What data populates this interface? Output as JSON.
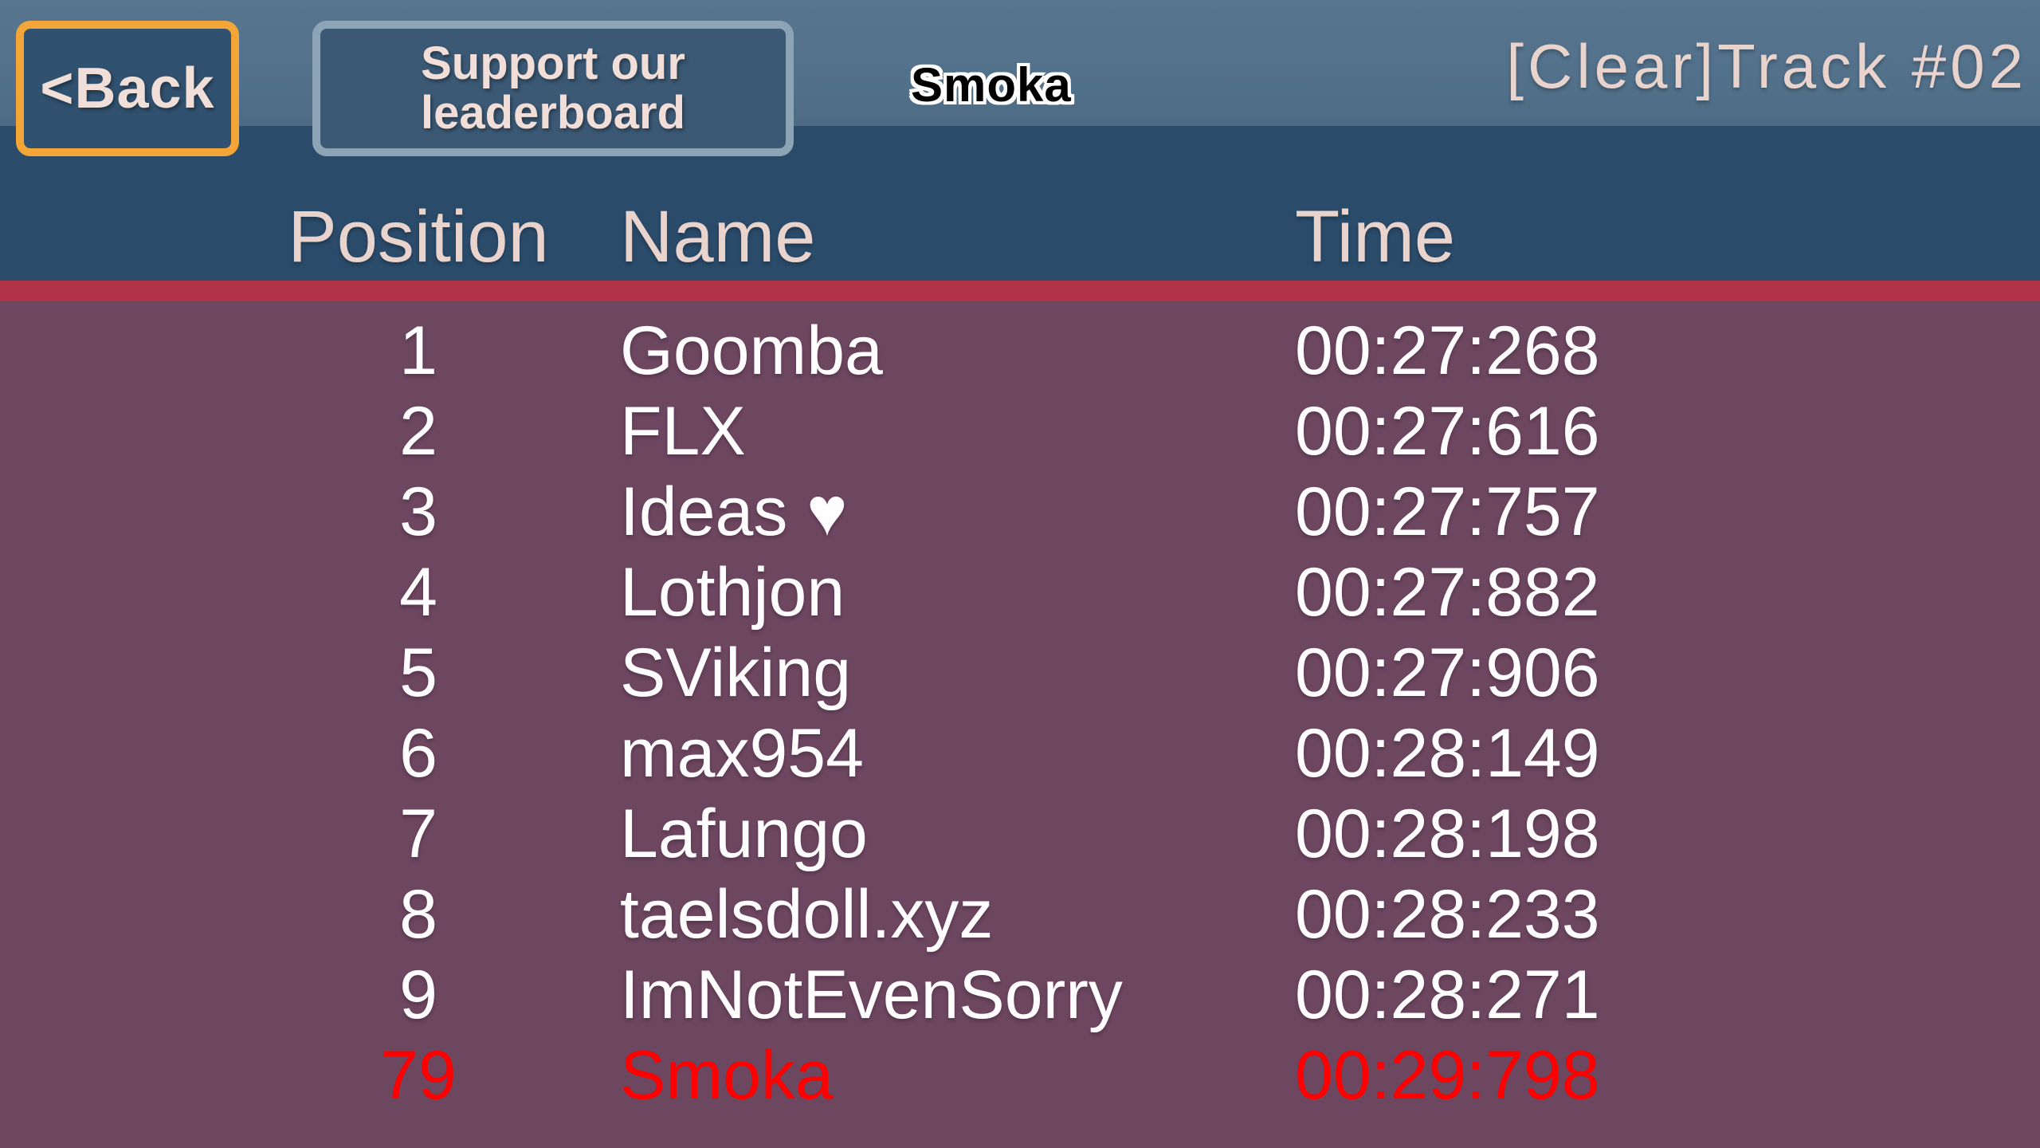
{
  "topbar": {
    "back_button_label": "<Back",
    "support_button": {
      "line1": "Support our",
      "line2": "leaderboard"
    },
    "player_name_label": "Smoka",
    "track_title": "[Clear]Track #02"
  },
  "leaderboard": {
    "headers": {
      "position": "Position",
      "name": "Name",
      "time": "Time"
    },
    "rows": [
      {
        "position": "1",
        "name": "Goomba",
        "time": "00:27:268",
        "highlight": false
      },
      {
        "position": "2",
        "name": "FLX",
        "time": "00:27:616",
        "highlight": false
      },
      {
        "position": "3",
        "name": "Ideas ♥",
        "time": "00:27:757",
        "highlight": false
      },
      {
        "position": "4",
        "name": "Lothjon",
        "time": "00:27:882",
        "highlight": false
      },
      {
        "position": "5",
        "name": "SViking",
        "time": "00:27:906",
        "highlight": false
      },
      {
        "position": "6",
        "name": "max954",
        "time": "00:28:149",
        "highlight": false
      },
      {
        "position": "7",
        "name": "Lafungo",
        "time": "00:28:198",
        "highlight": false
      },
      {
        "position": "8",
        "name": "taelsdoll.xyz",
        "time": "00:28:233",
        "highlight": false
      },
      {
        "position": "9",
        "name": "ImNotEvenSorry",
        "time": "00:28:271",
        "highlight": false
      },
      {
        "position": "79",
        "name": "Smoka",
        "time": "00:29:798",
        "highlight": true
      }
    ]
  },
  "colors": {
    "top_strip": "#517089",
    "header_band": "#2a4b6a",
    "divider_red": "#b23348",
    "body_background": "#6d4660",
    "back_button_border": "#f3a637",
    "highlight_row_text": "#ff0000"
  }
}
